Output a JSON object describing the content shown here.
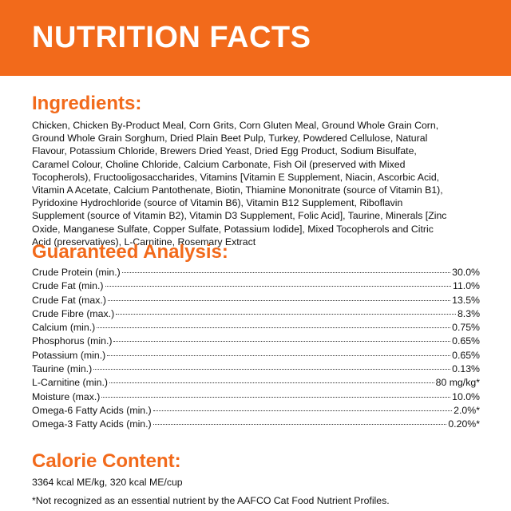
{
  "header": {
    "title": "NUTRITION FACTS"
  },
  "ingredients": {
    "heading": "Ingredients:",
    "lines": [
      "Chicken, Chicken By-Product Meal, Corn Grits, Corn Gluten Meal, Ground Whole Grain Corn,",
      "Ground Whole Grain Sorghum, Dried Plain Beet Pulp, Turkey, Powdered Cellulose, Natural",
      "Flavour, Potassium Chloride, Brewers Dried Yeast, Dried Egg Product, Sodium Bisulfate,",
      "Caramel Colour, Choline Chloride, Calcium Carbonate, Fish Oil (preserved with Mixed",
      "Tocopherols), Fructooligosaccharides, Vitamins [Vitamin E Supplement, Niacin, Ascorbic Acid,",
      "Vitamin A Acetate, Calcium Pantothenate, Biotin, Thiamine Mononitrate (source of Vitamin B1),",
      "Pyridoxine Hydrochloride (source of Vitamin B6), Vitamin B12 Supplement, Riboflavin",
      "Supplement (source of Vitamin B2), Vitamin D3 Supplement, Folic Acid], Taurine, Minerals [Zinc",
      "Oxide, Manganese Sulfate, Copper Sulfate, Potassium Iodide], Mixed Tocopherols and Citric",
      "Acid (preservatives), L-Carnitine, Rosemary Extract"
    ]
  },
  "analysis": {
    "heading": "Guaranteed Analysis:",
    "rows": [
      [
        "Crude Protein (min.)",
        "30.0%"
      ],
      [
        "Crude Fat (min.)",
        "11.0%"
      ],
      [
        "Crude Fat (max.)",
        "13.5%"
      ],
      [
        "Crude Fibre (max.)",
        "8.3%"
      ],
      [
        "Calcium (min.)",
        "0.75%"
      ],
      [
        "Phosphorus (min.)",
        "0.65%"
      ],
      [
        "Potassium (min.)",
        "0.65%"
      ],
      [
        "Taurine (min.)",
        "0.13%"
      ],
      [
        "L-Carnitine (min.)",
        "80 mg/kg*"
      ],
      [
        "Moisture (max.)",
        "10.0%"
      ],
      [
        "Omega-6 Fatty Acids (min.)",
        "2.0%*"
      ],
      [
        "Omega-3 Fatty Acids (min.)",
        "0.20%*"
      ]
    ]
  },
  "calorie": {
    "heading": "Calorie Content:",
    "text": "3364 kcal ME/kg, 320 kcal ME/cup"
  },
  "footnote": "*Not recognized as an essential nutrient by the AAFCO Cat Food Nutrient Profiles."
}
